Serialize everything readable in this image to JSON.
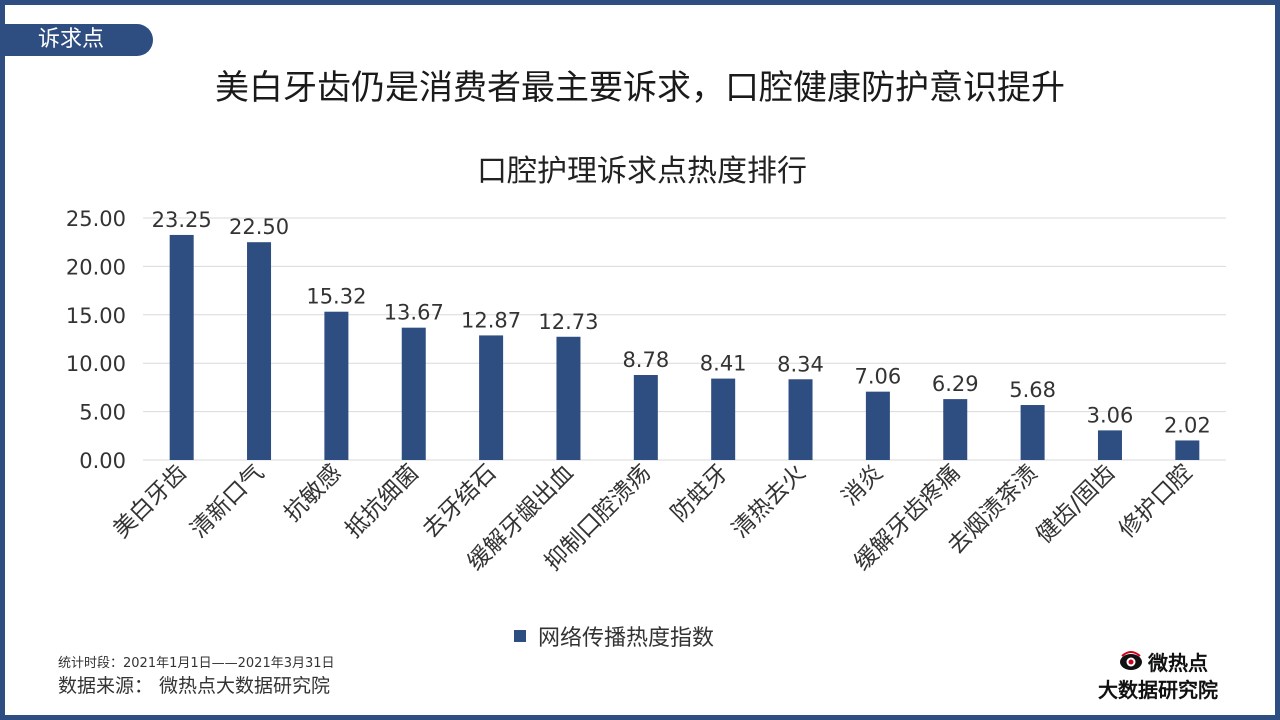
{
  "header": {
    "tag": "诉求点",
    "headline": "美白牙齿仍是消费者最主要诉求，口腔健康防护意识提升"
  },
  "colors": {
    "accent": "#2e4d80",
    "bar": "#2e4d80"
  },
  "chart_data": {
    "type": "bar",
    "title": "口腔护理诉求点热度排行",
    "categories": [
      "美白牙齿",
      "清新口气",
      "抗敏感",
      "抵抗细菌",
      "去牙结石",
      "缓解牙龈出血",
      "抑制口腔溃疡",
      "防蛀牙",
      "清热去火",
      "消炎",
      "缓解牙齿疼痛",
      "去烟渍茶渍",
      "健齿/固齿",
      "修护口腔"
    ],
    "series": [
      {
        "name": "网络传播热度指数",
        "values": [
          23.25,
          22.5,
          15.32,
          13.67,
          12.87,
          12.73,
          8.78,
          8.41,
          8.34,
          7.06,
          6.29,
          5.68,
          3.06,
          2.02
        ]
      }
    ],
    "value_labels": [
      "23.25",
      "22.50",
      "15.32",
      "13.67",
      "12.87",
      "12.73",
      "8.78",
      "8.41",
      "8.34",
      "7.06",
      "6.29",
      "5.68",
      "3.06",
      "2.02"
    ],
    "ylim": [
      0,
      25
    ],
    "yticks": [
      "0.00",
      "5.00",
      "10.00",
      "15.00",
      "20.00",
      "25.00"
    ],
    "grid": true,
    "legend_position": "bottom"
  },
  "footer": {
    "period": "统计时段：2021年1月1日——2021年3月31日",
    "source": "数据来源：  微热点大数据研究院"
  },
  "logo": {
    "top": "微热点",
    "bottom": "大数据研究院",
    "icon": "eye-logo-icon"
  }
}
